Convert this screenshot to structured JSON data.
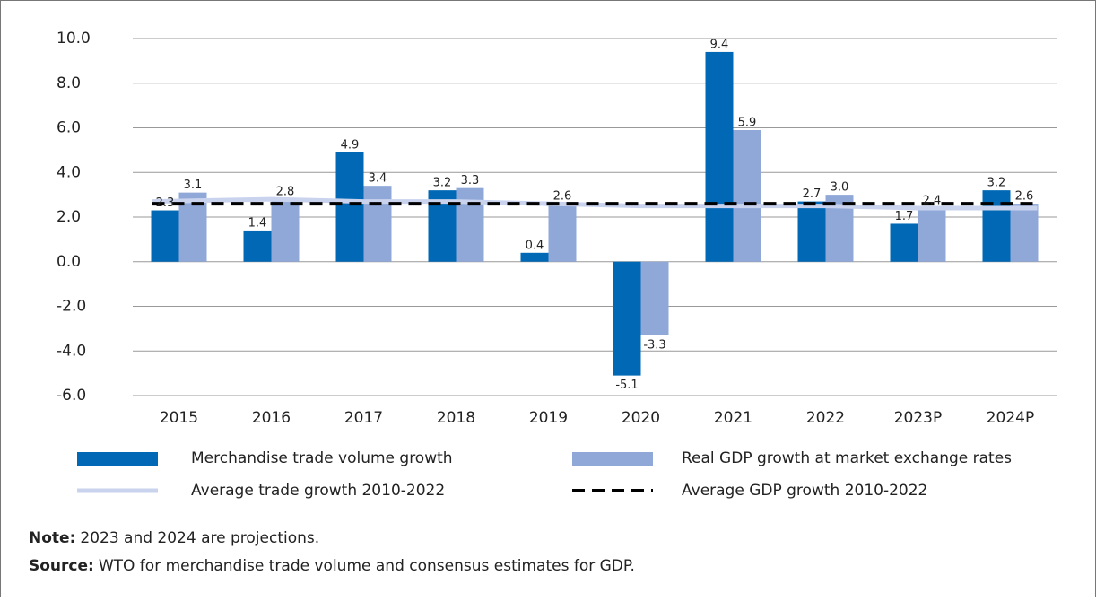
{
  "chart_data": {
    "type": "bar",
    "categories": [
      "2015",
      "2016",
      "2017",
      "2018",
      "2019",
      "2020",
      "2021",
      "2022",
      "2023P",
      "2024P"
    ],
    "series": [
      {
        "name": "Merchandise trade volume growth",
        "type": "bar",
        "color": "#0068b4",
        "values": [
          2.3,
          1.4,
          4.9,
          3.2,
          0.4,
          -5.1,
          9.4,
          2.7,
          1.7,
          3.2
        ],
        "value_labels": [
          "2.3",
          "1.4",
          "4.9",
          "3.2",
          "0.4",
          "-5.1",
          "9.4",
          "2.7",
          "1.7",
          "3.2"
        ]
      },
      {
        "name": "Real GDP growth at market exchange rates",
        "type": "bar",
        "color": "#8fa8d8",
        "values": [
          3.1,
          2.8,
          3.4,
          3.3,
          2.6,
          -3.3,
          5.9,
          3.0,
          2.4,
          2.6
        ],
        "value_labels": [
          "3.1",
          "2.8",
          "3.4",
          "3.3",
          "2.6",
          "-3.3",
          "5.9",
          "3.0",
          "2.4",
          "2.6"
        ]
      },
      {
        "name": "Average trade growth 2010-2022",
        "type": "line",
        "color": "#c9d3ee",
        "dash": false,
        "values": [
          2.7,
          2.8,
          2.7,
          2.7,
          2.6,
          2.5,
          2.5,
          2.5,
          2.4,
          2.4
        ]
      },
      {
        "name": "Average GDP growth 2010-2022",
        "type": "line",
        "color": "#000000",
        "dash": true,
        "values": [
          2.6,
          2.6,
          2.6,
          2.6,
          2.6,
          2.6,
          2.6,
          2.6,
          2.6,
          2.6
        ]
      }
    ],
    "ylim": [
      -6,
      10
    ],
    "yticks": [
      {
        "value": -6,
        "label": "-6.0"
      },
      {
        "value": -4,
        "label": "-4.0"
      },
      {
        "value": -2,
        "label": "-2.0"
      },
      {
        "value": 0,
        "label": "0.0"
      },
      {
        "value": 2,
        "label": "2.0"
      },
      {
        "value": 4,
        "label": "4.0"
      },
      {
        "value": 6,
        "label": "6.0"
      },
      {
        "value": 8,
        "label": "8.0"
      },
      {
        "value": 10,
        "label": "10.0"
      }
    ],
    "grid": true,
    "note": {
      "label": "Note:",
      "text": "2023 and 2024 are projections."
    },
    "source": {
      "label": "Source:",
      "text": "WTO for merchandise trade volume and consensus estimates for GDP."
    }
  }
}
